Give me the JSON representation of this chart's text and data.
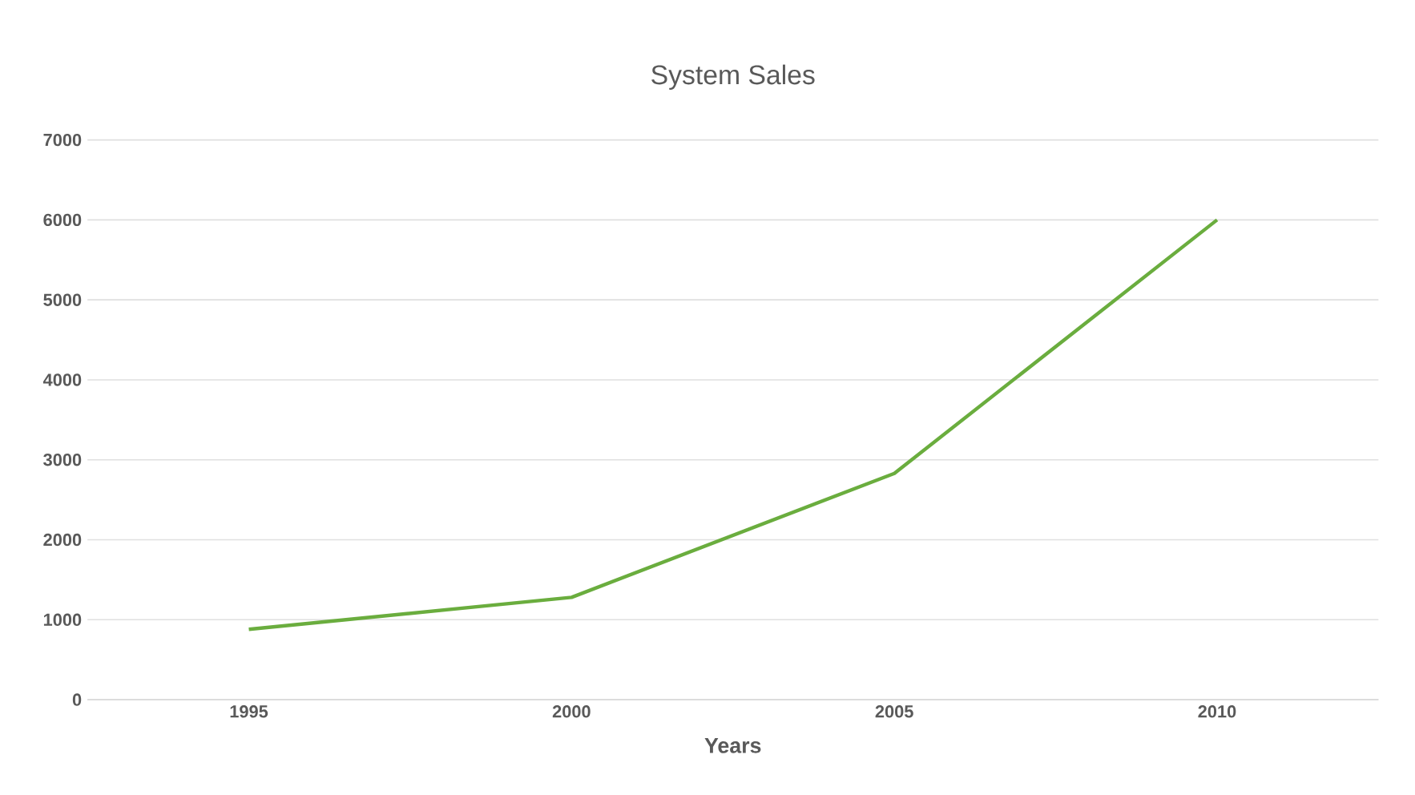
{
  "chart_data": {
    "type": "line",
    "title": "System Sales",
    "xlabel": "Years",
    "categories": [
      "1995",
      "2000",
      "2005",
      "2010"
    ],
    "series": [
      {
        "color": "#6aad3e",
        "values": [
          880,
          1280,
          2830,
          6000
        ]
      }
    ],
    "ylim": [
      0,
      7000
    ],
    "yticks": [
      0,
      1000,
      2000,
      3000,
      4000,
      5000,
      6000,
      7000
    ],
    "grid": "y",
    "marker": "none",
    "line_style": "solid"
  }
}
